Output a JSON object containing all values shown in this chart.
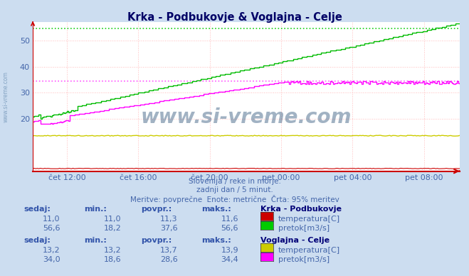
{
  "title": "Krka - Podbukovje & Voglajna - Celje",
  "bg_color": "#ccddf0",
  "plot_bg_color": "#ffffff",
  "subtitle_lines": [
    "Slovenija / reke in morje.",
    "zadnji dan / 5 minut.",
    "Meritve: povprečne  Enote: metrične  Črta: 95% meritev"
  ],
  "x_tick_labels": [
    "čet 12:00",
    "čet 16:00",
    "čet 20:00",
    "pet 00:00",
    "pet 04:00",
    "pet 08:00"
  ],
  "x_tick_fracs": [
    0.083,
    0.25,
    0.417,
    0.583,
    0.75,
    0.917
  ],
  "watermark": "www.si-vreme.com",
  "y_min": 0,
  "y_max": 57,
  "y_ticks": [
    20,
    30,
    40,
    50
  ],
  "avg_krka_flow": 37.6,
  "avg_voglajna_flow": 28.6,
  "avg_krka_temp": 11.3,
  "avg_voglajna_temp": 13.7,
  "max_krka_flow": 56.6,
  "max_voglajna_flow": 34.4,
  "colors": {
    "krka_temp": "#cc0000",
    "krka_flow": "#00bb00",
    "voglajna_temp": "#cccc00",
    "voglajna_flow": "#ff00ff",
    "avg_green": "#00cc00",
    "avg_magenta": "#ff44ff",
    "grid_red": "#ffaaaa",
    "grid_dotted": "#ffaaaa",
    "axis_color": "#cc0000",
    "text_blue": "#4466aa",
    "text_header": "#3355aa",
    "text_station": "#000077",
    "bg_text": "#7799cc"
  },
  "n_points": 288,
  "table": {
    "station1": "Krka - Podbukovje",
    "station2": "Voglajna - Celje",
    "headers": [
      "sedaj:",
      "min.:",
      "povpr.:",
      "maks.:"
    ],
    "krka_temp": {
      "sedaj": "11,0",
      "min": "11,0",
      "povpr": "11,3",
      "maks": "11,6",
      "label": "temperatura[C]",
      "color": "#cc0000"
    },
    "krka_flow": {
      "sedaj": "56,6",
      "min": "18,2",
      "povpr": "37,6",
      "maks": "56,6",
      "label": "pretok[m3/s]",
      "color": "#00cc00"
    },
    "voglajna_temp": {
      "sedaj": "13,2",
      "min": "13,2",
      "povpr": "13,7",
      "maks": "13,9",
      "label": "temperatura[C]",
      "color": "#cccc00"
    },
    "voglajna_flow": {
      "sedaj": "34,0",
      "min": "18,6",
      "povpr": "28,6",
      "maks": "34,4",
      "label": "pretok[m3/s]",
      "color": "#ff00ff"
    }
  }
}
